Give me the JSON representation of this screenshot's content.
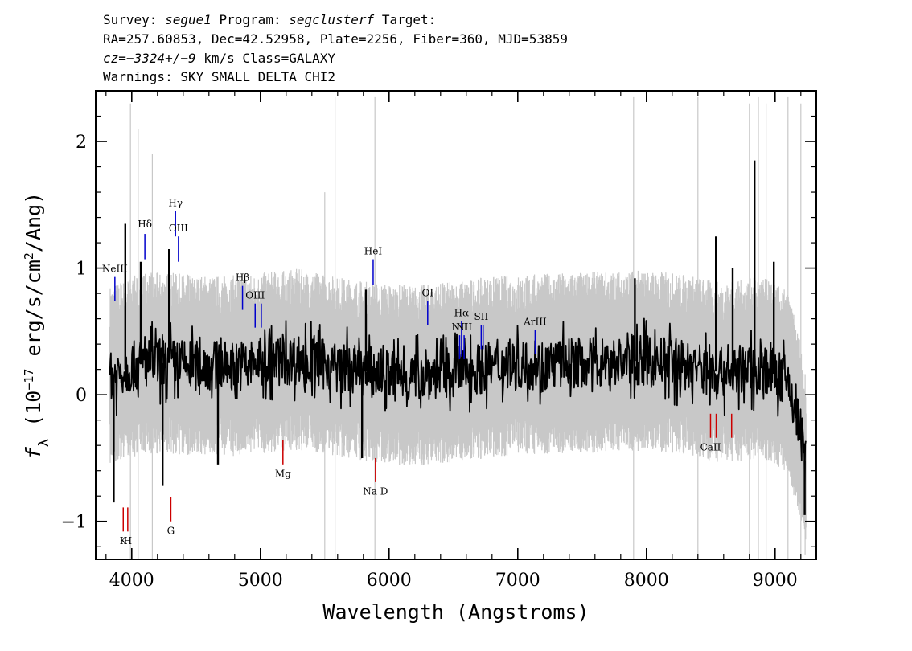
{
  "header": {
    "line1": {
      "survey_label": "Survey:",
      "survey_value": "segue1",
      "program_label": "Program:",
      "program_value": "segclusterf",
      "target_label": "Target:"
    },
    "line2": "RA=257.60853, Dec=42.52958, Plate=2256, Fiber=360, MJD=53859",
    "line3": {
      "cz_label": "cz",
      "cz_value": "=−3324+/−9",
      "cz_unit": "km/s",
      "class": "Class=GALAXY"
    },
    "line4": "Warnings: SKY SMALL_DELTA_CHI2"
  },
  "chart_data": {
    "type": "line",
    "xlabel": "Wavelength (Angstroms)",
    "ylabel": "f_λ (10^-17 erg/s/cm^2/Ang)",
    "xlim": [
      3720,
      9320
    ],
    "ylim": [
      -1.3,
      2.4
    ],
    "x_ticks": [
      4000,
      5000,
      6000,
      7000,
      8000,
      9000
    ],
    "y_ticks": [
      -1,
      0,
      1,
      2
    ],
    "grid": false,
    "series": [
      {
        "role": "flux",
        "color": "#000000",
        "anchors_x": [
          3830,
          3900,
          4000,
          4100,
          4300,
          4500,
          4800,
          5000,
          5300,
          5600,
          5900,
          6200,
          6500,
          6800,
          7100,
          7400,
          7700,
          8000,
          8300,
          8600,
          8900,
          9100,
          9200,
          9240
        ],
        "anchors_y": [
          0.15,
          0.18,
          0.22,
          0.25,
          0.25,
          0.23,
          0.23,
          0.25,
          0.28,
          0.22,
          0.17,
          0.15,
          0.18,
          0.22,
          0.24,
          0.25,
          0.26,
          0.27,
          0.24,
          0.17,
          0.22,
          0.1,
          -0.3,
          -0.6
        ],
        "noise_amplitude": 0.2,
        "notable_peaks": [
          {
            "x": 3950,
            "y": 1.35
          },
          {
            "x": 4070,
            "y": 1.05
          },
          {
            "x": 4290,
            "y": 1.15
          },
          {
            "x": 5820,
            "y": 0.83
          },
          {
            "x": 7910,
            "y": 0.92
          },
          {
            "x": 8540,
            "y": 1.25
          },
          {
            "x": 8670,
            "y": 1.0
          },
          {
            "x": 8840,
            "y": 1.85
          },
          {
            "x": 8990,
            "y": 1.05
          }
        ],
        "notable_dips": [
          {
            "x": 3860,
            "y": -0.85
          },
          {
            "x": 4240,
            "y": -0.72
          },
          {
            "x": 4670,
            "y": -0.55
          },
          {
            "x": 5790,
            "y": -0.5
          },
          {
            "x": 9230,
            "y": -0.95
          }
        ]
      },
      {
        "role": "error-envelope",
        "color": "#c8c8c8",
        "noise_amplitude": 0.55,
        "spikes": [
          {
            "x": 3990,
            "y": 2.3
          },
          {
            "x": 4050,
            "y": 2.1
          },
          {
            "x": 4160,
            "y": 1.9
          },
          {
            "x": 5500,
            "y": 1.6
          },
          {
            "x": 5580,
            "y": 2.35
          },
          {
            "x": 5890,
            "y": 2.35
          },
          {
            "x": 7900,
            "y": 2.35
          },
          {
            "x": 8400,
            "y": 2.35
          },
          {
            "x": 8800,
            "y": 2.3
          },
          {
            "x": 8870,
            "y": 2.35
          },
          {
            "x": 8930,
            "y": 2.3
          },
          {
            "x": 9100,
            "y": 2.35
          },
          {
            "x": 9200,
            "y": 2.3
          }
        ]
      }
    ],
    "emission_lines": [
      {
        "label": "NeIII",
        "x": 3869,
        "y0": 0.74,
        "y1": 0.93,
        "color": "#0000cc",
        "label_y": 0.97
      },
      {
        "label": "Hδ",
        "x": 4102,
        "y0": 1.07,
        "y1": 1.27,
        "color": "#0000cc",
        "label_y": 1.32
      },
      {
        "label": "Hγ",
        "x": 4340,
        "y0": 1.25,
        "y1": 1.45,
        "color": "#0000cc",
        "label_y": 1.49
      },
      {
        "label": "OIII",
        "x": 4363,
        "y0": 1.05,
        "y1": 1.25,
        "color": "#0000cc",
        "label_y": 1.29
      },
      {
        "label": "Hβ",
        "x": 4861,
        "y0": 0.67,
        "y1": 0.86,
        "color": "#0000cc",
        "label_y": 0.9
      },
      {
        "label": "OIII",
        "x": 4959,
        "y0": 0.53,
        "y1": 0.72,
        "color": "#0000cc",
        "label_y": 0.76
      },
      {
        "label": "",
        "x": 5007,
        "y0": 0.53,
        "y1": 0.72,
        "color": "#0000cc"
      },
      {
        "label": "HeI",
        "x": 5876,
        "y0": 0.87,
        "y1": 1.07,
        "color": "#0000cc",
        "label_y": 1.11
      },
      {
        "label": "OI",
        "x": 6300,
        "y0": 0.55,
        "y1": 0.74,
        "color": "#0000cc",
        "label_y": 0.78
      },
      {
        "label": "NII",
        "x": 6548,
        "y0": 0.28,
        "y1": 0.47,
        "color": "#0000cc",
        "label_y": 0.51
      },
      {
        "label": "Hα",
        "x": 6563,
        "y0": 0.3,
        "y1": 0.58,
        "color": "#0000cc",
        "label_y": 0.62
      },
      {
        "label": "NII",
        "x": 6583,
        "y0": 0.28,
        "y1": 0.47,
        "color": "#0000cc",
        "label_y": 0.51
      },
      {
        "label": "SII",
        "x": 6716,
        "y0": 0.36,
        "y1": 0.55,
        "color": "#0000cc",
        "label_y": 0.59
      },
      {
        "label": "",
        "x": 6731,
        "y0": 0.36,
        "y1": 0.55,
        "color": "#0000cc"
      },
      {
        "label": "ArIII",
        "x": 7135,
        "y0": 0.32,
        "y1": 0.51,
        "color": "#0000cc",
        "label_y": 0.55
      }
    ],
    "absorption_lines": [
      {
        "label": "K",
        "x": 3934,
        "y0": -1.08,
        "y1": -0.89,
        "color": "#cc0000",
        "label_y": -1.18
      },
      {
        "label": "H",
        "x": 3969,
        "y0": -1.08,
        "y1": -0.89,
        "color": "#cc0000",
        "label_y": -1.18
      },
      {
        "label": "G",
        "x": 4304,
        "y0": -1.0,
        "y1": -0.81,
        "color": "#cc0000",
        "label_y": -1.1
      },
      {
        "label": "Mg",
        "x": 5175,
        "y0": -0.55,
        "y1": -0.36,
        "color": "#cc0000",
        "label_y": -0.65
      },
      {
        "label": "Na D",
        "x": 5894,
        "y0": -0.69,
        "y1": -0.5,
        "color": "#cc0000",
        "label_y": -0.79
      },
      {
        "label": "CaII",
        "x": 8498,
        "y0": -0.34,
        "y1": -0.15,
        "color": "#cc0000",
        "label_y": -0.44
      },
      {
        "label": "",
        "x": 8542,
        "y0": -0.34,
        "y1": -0.15,
        "color": "#cc0000"
      },
      {
        "label": "",
        "x": 8662,
        "y0": -0.34,
        "y1": -0.15,
        "color": "#cc0000"
      }
    ]
  }
}
